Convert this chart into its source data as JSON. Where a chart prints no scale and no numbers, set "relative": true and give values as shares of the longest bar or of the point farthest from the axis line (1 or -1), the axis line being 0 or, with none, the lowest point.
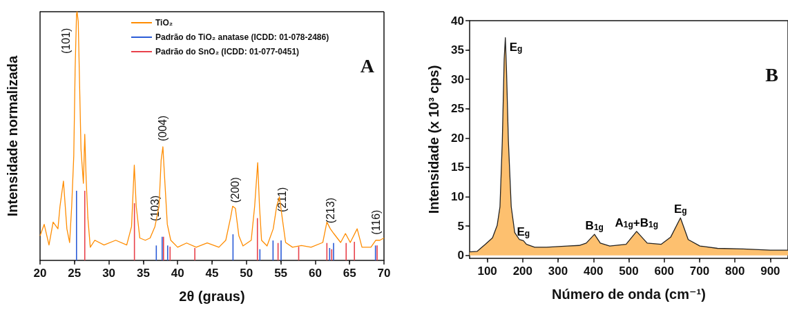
{
  "chart_data": [
    {
      "type": "line",
      "relative": true,
      "xlabel": "2θ (graus)",
      "ylabel": "Intensidade normalizada",
      "legend": "top right",
      "xlim": [
        20,
        70
      ],
      "xticks": [
        20,
        25,
        30,
        35,
        40,
        45,
        50,
        55,
        60,
        65,
        70
      ],
      "x": [
        20.0,
        20.6,
        21.3,
        21.9,
        22.6,
        22.9,
        23.4,
        23.9,
        24.3,
        24.6,
        24.9,
        25.1,
        25.3,
        25.38,
        25.55,
        25.7,
        25.95,
        26.3,
        26.5,
        26.7,
        26.95,
        27.3,
        27.96,
        29.3,
        31.0,
        32.6,
        33.3,
        33.7,
        33.98,
        34.5,
        35.3,
        36.0,
        36.7,
        37.3,
        37.6,
        37.86,
        38.06,
        38.5,
        39.0,
        40.0,
        41.3,
        42.7,
        44.3,
        46.0,
        47.0,
        47.7,
        48.0,
        48.4,
        48.9,
        49.5,
        50.7,
        51.2,
        51.64,
        51.9,
        52.2,
        53.0,
        53.9,
        54.4,
        54.8,
        55.2,
        55.7,
        56.7,
        58.0,
        59.4,
        61.1,
        61.7,
        62.2,
        62.7,
        63.7,
        64.4,
        65.1,
        66.1,
        66.8,
        68.1,
        68.8,
        69.4,
        70.0
      ],
      "series": [
        {
          "name": "TiO₂",
          "color": "#ff8c00",
          "values": [
            0.099,
            0.145,
            0.062,
            0.154,
            0.127,
            0.218,
            0.319,
            0.127,
            0.072,
            0.218,
            0.42,
            0.769,
            0.989,
            1,
            0.961,
            0.769,
            0.448,
            0.31,
            0.507,
            0.328,
            0.172,
            0.053,
            0.081,
            0.062,
            0.081,
            0.062,
            0.136,
            0.383,
            0.218,
            0.09,
            0.081,
            0.09,
            0.136,
            0.218,
            0.402,
            0.457,
            0.356,
            0.145,
            0.081,
            0.053,
            0.07,
            0.053,
            0.07,
            0.053,
            0.081,
            0.172,
            0.218,
            0.209,
            0.099,
            0.058,
            0.081,
            0.218,
            0.393,
            0.218,
            0.081,
            0.058,
            0.127,
            0.218,
            0.255,
            0.172,
            0.072,
            0.053,
            0.06,
            0.053,
            0.072,
            0.154,
            0.127,
            0.108,
            0.072,
            0.108,
            0.072,
            0.127,
            0.053,
            0.053,
            0.081,
            0.081,
            0.09
          ]
        },
        {
          "type": "bar",
          "name": "Padrão do TiO₂ anatase (ICDD: 01-078-2486)",
          "color": "#2a5bd7",
          "x": [
            25.3,
            36.9,
            37.75,
            38.55,
            48.05,
            51.96,
            53.87,
            55.04,
            62.1,
            62.67,
            68.76
          ],
          "values": [
            0.28,
            0.06,
            0.095,
            0.06,
            0.105,
            0.045,
            0.08,
            0.08,
            0.05,
            0.07,
            0.06
          ]
        },
        {
          "type": "bar",
          "name": "Padrão do SnO₂ (ICDD: 01-077-0451)",
          "color": "#e8404a",
          "x": [
            26.5,
            33.72,
            37.95,
            38.9,
            42.5,
            51.6,
            54.6,
            57.6,
            61.7,
            62.4,
            64.5,
            65.7,
            69.0
          ],
          "values": [
            0.28,
            0.23,
            0.095,
            0.055,
            0.05,
            0.17,
            0.07,
            0.055,
            0.07,
            0.045,
            0.07,
            0.075,
            0.06
          ]
        }
      ],
      "annotations": [
        "A",
        {
          "text": "(101)",
          "x": 25.38,
          "y": 1
        },
        {
          "text": "(103)",
          "x": 36.7,
          "y": 0.136
        },
        {
          "text": "(004)",
          "x": 37.86,
          "y": 0.457
        },
        {
          "text": "(200)",
          "x": 48.4,
          "y": 0.209
        },
        {
          "text": "(211)",
          "x": 55.2,
          "y": 0.172
        },
        {
          "text": "(213)",
          "x": 62.2,
          "y": 0.127
        },
        {
          "text": "(116)",
          "x": 68.8,
          "y": 0.081
        }
      ]
    },
    {
      "type": "area",
      "xlabel": "Número de onda (cm⁻¹)",
      "ylabel": "Intensidade (x 10³ cps)",
      "xlim": [
        50,
        950
      ],
      "xticks": [
        100,
        200,
        300,
        400,
        500,
        600,
        700,
        800,
        900
      ],
      "ylim": [
        -0.5,
        40
      ],
      "yticks": [
        0,
        5,
        10,
        15,
        20,
        25,
        30,
        35,
        40
      ],
      "x": [
        50,
        71.5,
        81,
        94.7,
        114.6,
        127.8,
        135.8,
        142.4,
        147.7,
        151,
        154.3,
        159.6,
        167.6,
        177.5,
        190.8,
        202,
        210.7,
        233.9,
        267,
        326.6,
        359.8,
        379.7,
        402.9,
        419.4,
        446,
        492.3,
        522,
        552,
        591.7,
        618.2,
        646,
        667.9,
        701,
        750.7,
        823.6,
        900,
        950
      ],
      "series": [
        {
          "color": "#fdc06f",
          "values": [
            0.6,
            0.7,
            1.2,
            1.9,
            3.0,
            5.1,
            8.3,
            19.5,
            33.5,
            37.1,
            31.5,
            19.5,
            8.3,
            3.9,
            2.7,
            2.5,
            1.9,
            1.4,
            1.4,
            1.6,
            1.7,
            2.1,
            3.6,
            2.1,
            1.6,
            1.9,
            4.1,
            2.1,
            1.9,
            3.1,
            6.4,
            2.7,
            1.6,
            1.2,
            1.1,
            0.9,
            0.9
          ]
        }
      ],
      "annotations": [
        "B",
        {
          "text": "E$_{g}$",
          "x": 151,
          "y": 37.1
        },
        {
          "text": "E$_{g}$",
          "x": 202,
          "y": 2.5
        },
        {
          "text": "B$_{1g}$",
          "x": 402.9,
          "y": 3.6
        },
        {
          "text": "A$_{1g}$+B$_{1g}$",
          "x": 522,
          "y": 4.1
        },
        {
          "text": "E$_{g}$",
          "x": 646,
          "y": 6.4
        }
      ]
    }
  ]
}
